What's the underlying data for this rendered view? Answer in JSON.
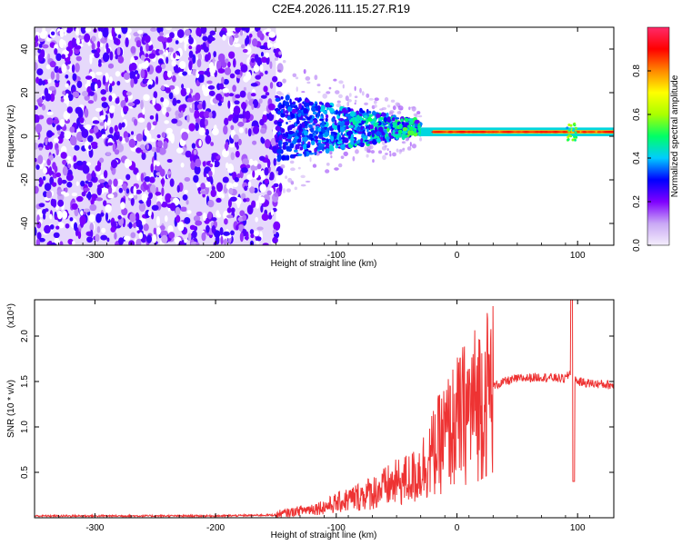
{
  "title": "C2E4.2026.111.15.27.R19",
  "chart_data": [
    {
      "type": "heatmap",
      "xlabel": "Height of straight line (km)",
      "ylabel": "Frequency (Hz)",
      "xlim": [
        -350,
        130
      ],
      "ylim": [
        -50,
        50
      ],
      "xticks": [
        -300,
        -200,
        -100,
        0,
        100
      ],
      "yticks": [
        -40,
        -20,
        0,
        20,
        40
      ],
      "colorbar": {
        "label": "Normalized spectral amplitude",
        "range": [
          0,
          1
        ],
        "ticks": [
          "0.0",
          "0.2",
          "0.4",
          "0.6",
          "0.8"
        ],
        "colors": [
          "#f4eefc",
          "#c9a8f5",
          "#7f00ff",
          "#0000ff",
          "#00ccff",
          "#00ff66",
          "#aaff00",
          "#ffff00",
          "#ff8800",
          "#ff0000",
          "#ff2a6a"
        ]
      },
      "features": {
        "noise_region_x": [
          -350,
          -150
        ],
        "tapering_signal_x": [
          -150,
          -30
        ],
        "steady_line_x": [
          -30,
          130
        ],
        "steady_line_frequency": 2,
        "peak_burst_x": 95
      }
    },
    {
      "type": "line",
      "xlabel": "Height of straight line (km)",
      "ylabel": "SNR (10 * v/v)",
      "y_multiplier": "(x10⁴)",
      "xlim": [
        -350,
        130
      ],
      "ylim": [
        0,
        2.4
      ],
      "xticks": [
        -300,
        -200,
        -100,
        0,
        100
      ],
      "yticks": [
        "0.5",
        "1.0",
        "1.5",
        "2.0"
      ],
      "color": "#ee3333",
      "series": [
        {
          "x": [
            -350,
            -300,
            -250,
            -200,
            -150,
            -130,
            -110,
            -90,
            -70,
            -50,
            -35,
            -20,
            -10,
            0,
            10,
            20,
            30,
            40,
            50,
            60,
            70,
            80,
            90,
            94,
            96,
            98,
            100,
            110,
            120,
            130
          ],
          "y": [
            0.02,
            0.02,
            0.02,
            0.02,
            0.03,
            0.08,
            0.12,
            0.2,
            0.28,
            0.38,
            0.45,
            0.7,
            0.9,
            1.05,
            1.2,
            1.32,
            1.45,
            1.5,
            1.53,
            1.54,
            1.55,
            1.54,
            1.53,
            1.6,
            1.45,
            1.52,
            1.5,
            1.48,
            1.47,
            1.46
          ]
        }
      ]
    }
  ]
}
